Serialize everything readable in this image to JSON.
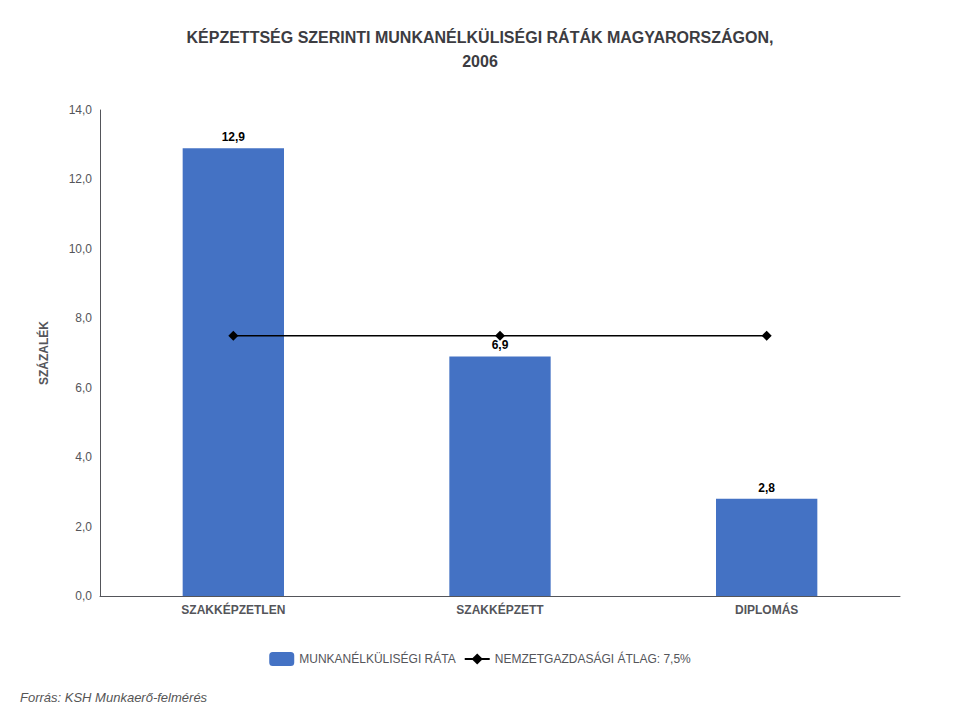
{
  "chart_data": {
    "type": "bar",
    "title": "KÉPZETTSÉG SZERINTI MUNKANÉLKÜLISÉGI RÁTÁK MAGYARORSZÁGON,\n2006",
    "ylabel": "SZÁZALÉK",
    "categories": [
      "SZAKKÉPZETLEN",
      "SZAKKÉPZETT",
      "DIPLOMÁS"
    ],
    "series": [
      {
        "name": "MUNKANÉLKÜLISÉGI RÁTA",
        "type": "bar",
        "color": "#4472C4",
        "values": [
          12.9,
          6.9,
          2.8
        ],
        "value_labels": [
          "12,9",
          "6,9",
          "2,8"
        ],
        "data_labels": true
      },
      {
        "name": "NEMZETGAZDASÁGI ÁTLAG: 7,5%",
        "type": "line",
        "color": "#000000",
        "marker": "diamond",
        "values": [
          7.5,
          7.5,
          7.5
        ]
      }
    ],
    "ylim": [
      0,
      14
    ],
    "yticks": [
      {
        "value": 0.0,
        "label": "0,0"
      },
      {
        "value": 2.0,
        "label": "2,0"
      },
      {
        "value": 4.0,
        "label": "4,0"
      },
      {
        "value": 6.0,
        "label": "6,0"
      },
      {
        "value": 8.0,
        "label": "8,0"
      },
      {
        "value": 10.0,
        "label": "10,0"
      },
      {
        "value": 12.0,
        "label": "12,0"
      },
      {
        "value": 14.0,
        "label": "14,0"
      }
    ],
    "grid": false,
    "legend": "bottom",
    "annotations": [
      "Forrás: KSH Munkaerő-felmérés"
    ]
  }
}
